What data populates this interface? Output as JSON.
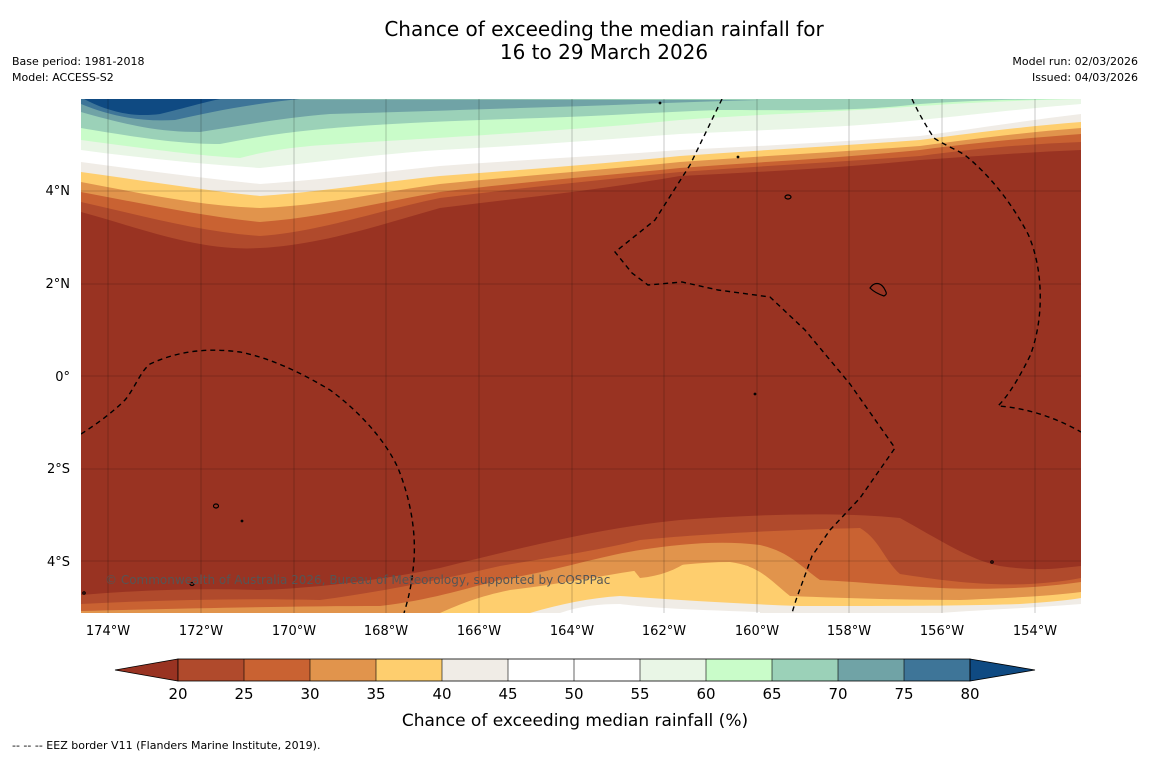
{
  "title": {
    "line1": "Chance of exceeding the median rainfall for",
    "line2": "16 to 29 March 2026"
  },
  "meta": {
    "base_period": "Base period: 1981-2018",
    "model": "Model: ACCESS-S2",
    "model_run": "Model run: 02/03/2026",
    "issued": "Issued: 04/03/2026"
  },
  "map": {
    "region": {
      "lon_min": -174.6,
      "lon_max": -153.1,
      "lat_min": -5.2,
      "lat_max": 5.9
    },
    "lat_ticks": [
      {
        "value": 4,
        "label": "4°N"
      },
      {
        "value": 2,
        "label": "2°N"
      },
      {
        "value": 0,
        "label": "0°"
      },
      {
        "value": -2,
        "label": "2°S"
      },
      {
        "value": -4,
        "label": "4°S"
      }
    ],
    "lon_ticks": [
      {
        "value": -174,
        "label": "174°W"
      },
      {
        "value": -172,
        "label": "172°W"
      },
      {
        "value": -170,
        "label": "170°W"
      },
      {
        "value": -168,
        "label": "168°W"
      },
      {
        "value": -166,
        "label": "166°W"
      },
      {
        "value": -164,
        "label": "164°W"
      },
      {
        "value": -162,
        "label": "162°W"
      },
      {
        "value": -160,
        "label": "160°W"
      },
      {
        "value": -158,
        "label": "158°W"
      },
      {
        "value": -156,
        "label": "156°W"
      },
      {
        "value": -154,
        "label": "154°W"
      }
    ],
    "copyright": "© Commonwealth of Australia 2026, Bureau of Meteorology, supported by COSPPac"
  },
  "colorbar": {
    "ticks": [
      "20",
      "25",
      "30",
      "35",
      "40",
      "45",
      "50",
      "55",
      "60",
      "65",
      "70",
      "75",
      "80"
    ],
    "colors": [
      "#993322",
      "#b04a2c",
      "#c96232",
      "#e1944c",
      "#fece6e",
      "#f0ece6",
      "#ffffff",
      "#ffffff",
      "#e9f6e6",
      "#c9fcc9",
      "#9bd1b8",
      "#70a3a6",
      "#3e7598",
      "#0f4a82"
    ],
    "label": "Chance of exceeding median rainfall (%)"
  },
  "footer": "--  --  -- EEZ border V11 (Flanders Marine Institute, 2019)."
}
